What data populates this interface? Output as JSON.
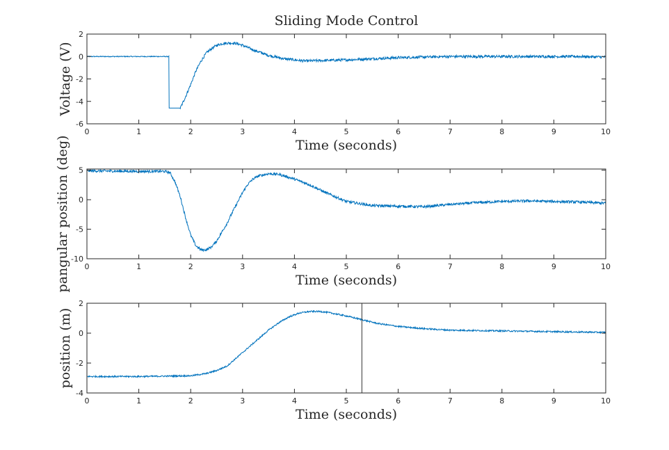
{
  "figure": {
    "title": "Sliding Mode Control",
    "line_color": "#0072BD",
    "axes_color": "#262626",
    "marker_color": "#333333"
  },
  "chart_data": [
    {
      "type": "line",
      "title": "Sliding Mode Control",
      "xlabel": "Time (seconds)",
      "ylabel": "Voltage (V)",
      "xlim": [
        0,
        10
      ],
      "ylim": [
        -6,
        2
      ],
      "xticks": [
        0,
        1,
        2,
        3,
        4,
        5,
        6,
        7,
        8,
        9,
        10
      ],
      "yticks": [
        2,
        0,
        -2,
        -4,
        -6
      ],
      "grid": false,
      "series": [
        {
          "x": [
            0,
            1.58,
            1.585,
            1.8,
            1.9,
            2.0,
            2.1,
            2.2,
            2.3,
            2.4,
            2.5,
            2.6,
            2.7,
            2.8,
            2.9,
            3.0,
            3.2,
            3.5,
            3.8,
            4.2,
            4.6,
            5.0,
            5.5,
            6.0,
            6.5,
            7.0,
            7.5,
            8.0,
            8.5,
            9.0,
            9.5,
            10.0
          ],
          "y": [
            0.0,
            0.0,
            -4.6,
            -4.6,
            -3.6,
            -2.5,
            -1.3,
            -0.4,
            0.3,
            0.7,
            1.0,
            1.15,
            1.2,
            1.2,
            1.15,
            1.0,
            0.6,
            0.1,
            -0.2,
            -0.4,
            -0.35,
            -0.3,
            -0.2,
            -0.1,
            -0.05,
            0.0,
            0.0,
            0.0,
            0.0,
            0.0,
            0.0,
            -0.05
          ]
        }
      ]
    },
    {
      "type": "line",
      "xlabel": "Time (seconds)",
      "ylabel": "pangular position (deg)",
      "xlim": [
        0,
        10
      ],
      "ylim": [
        -10,
        5.2
      ],
      "xticks": [
        0,
        1,
        2,
        3,
        4,
        5,
        6,
        7,
        8,
        9,
        10
      ],
      "yticks": [
        5,
        0,
        -5,
        -10
      ],
      "grid": false,
      "series": [
        {
          "x": [
            0,
            1.0,
            1.5,
            1.6,
            1.7,
            1.8,
            1.9,
            2.0,
            2.1,
            2.2,
            2.3,
            2.4,
            2.5,
            2.6,
            2.7,
            2.8,
            2.9,
            3.0,
            3.1,
            3.2,
            3.3,
            3.5,
            3.7,
            4.0,
            4.3,
            4.6,
            5.0,
            5.5,
            6.0,
            6.5,
            7.0,
            7.5,
            8.0,
            8.5,
            9.0,
            9.5,
            10.0
          ],
          "y": [
            4.9,
            4.8,
            4.8,
            4.6,
            3.0,
            0.5,
            -3.0,
            -6.0,
            -7.8,
            -8.5,
            -8.5,
            -8.0,
            -7.0,
            -5.5,
            -4.0,
            -2.2,
            -0.5,
            1.2,
            2.6,
            3.5,
            4.0,
            4.4,
            4.3,
            3.5,
            2.5,
            1.2,
            -0.3,
            -1.0,
            -1.1,
            -1.2,
            -0.8,
            -0.5,
            -0.3,
            -0.2,
            -0.3,
            -0.4,
            -0.6
          ]
        }
      ]
    },
    {
      "type": "line",
      "xlabel": "Time (seconds)",
      "ylabel": "position (m)",
      "xlim": [
        0,
        10
      ],
      "ylim": [
        -4,
        2
      ],
      "xticks": [
        0,
        1,
        2,
        3,
        4,
        5,
        6,
        7,
        8,
        9,
        10
      ],
      "yticks": [
        2,
        0,
        -2,
        -4
      ],
      "grid": false,
      "vline_x": 5.3,
      "series": [
        {
          "x": [
            0,
            1.0,
            2.0,
            2.3,
            2.5,
            2.7,
            2.9,
            3.1,
            3.3,
            3.5,
            3.7,
            3.9,
            4.1,
            4.3,
            4.5,
            4.7,
            5.0,
            5.3,
            5.6,
            6.0,
            6.5,
            7.0,
            8.0,
            9.0,
            10.0
          ],
          "y": [
            -2.9,
            -2.9,
            -2.85,
            -2.7,
            -2.5,
            -2.2,
            -1.6,
            -1.0,
            -0.4,
            0.2,
            0.7,
            1.1,
            1.35,
            1.45,
            1.45,
            1.35,
            1.15,
            0.9,
            0.65,
            0.45,
            0.3,
            0.2,
            0.15,
            0.1,
            0.05
          ]
        }
      ]
    }
  ]
}
